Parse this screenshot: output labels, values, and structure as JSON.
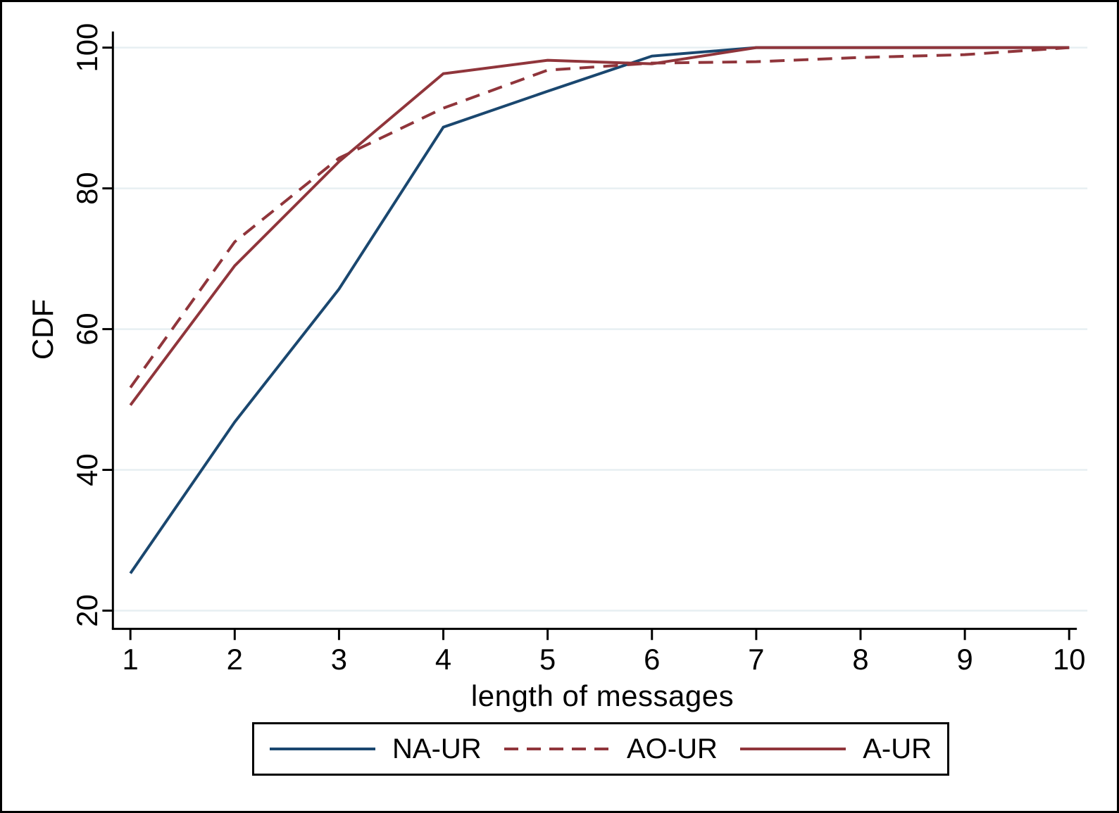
{
  "figure": {
    "background_color": "#ffffff",
    "frame_color": "#000000"
  },
  "chart_data": {
    "type": "line",
    "title": "",
    "xlabel": "length of messages",
    "ylabel": "CDF",
    "x": [
      1,
      2,
      3,
      4,
      5,
      6,
      7,
      8,
      9,
      10
    ],
    "xticks": [
      1,
      2,
      3,
      4,
      5,
      6,
      7,
      8,
      9,
      10
    ],
    "yticks": [
      20,
      40,
      60,
      80,
      100
    ],
    "xlim": [
      1,
      10
    ],
    "ylim": [
      20,
      100
    ],
    "grid": "horizontal",
    "gridline_color": "#e7eff2",
    "axis_color": "#000000",
    "legend_position": "bottom",
    "series": [
      {
        "name": "NA-UR",
        "color": "#1a476f",
        "style": "solid",
        "values": [
          25.3,
          46.8,
          65.7,
          88.7,
          93.8,
          98.8,
          100,
          100,
          100,
          100
        ]
      },
      {
        "name": "AO-UR",
        "color": "#90353b",
        "style": "dashed",
        "values": [
          51.7,
          72.4,
          84.3,
          91.4,
          96.8,
          97.8,
          98.0,
          98.6,
          99.0,
          100
        ]
      },
      {
        "name": "A-UR",
        "color": "#90353b",
        "style": "solid",
        "values": [
          49.2,
          69.0,
          83.8,
          96.3,
          98.2,
          97.7,
          100,
          100,
          100,
          100
        ]
      }
    ]
  }
}
